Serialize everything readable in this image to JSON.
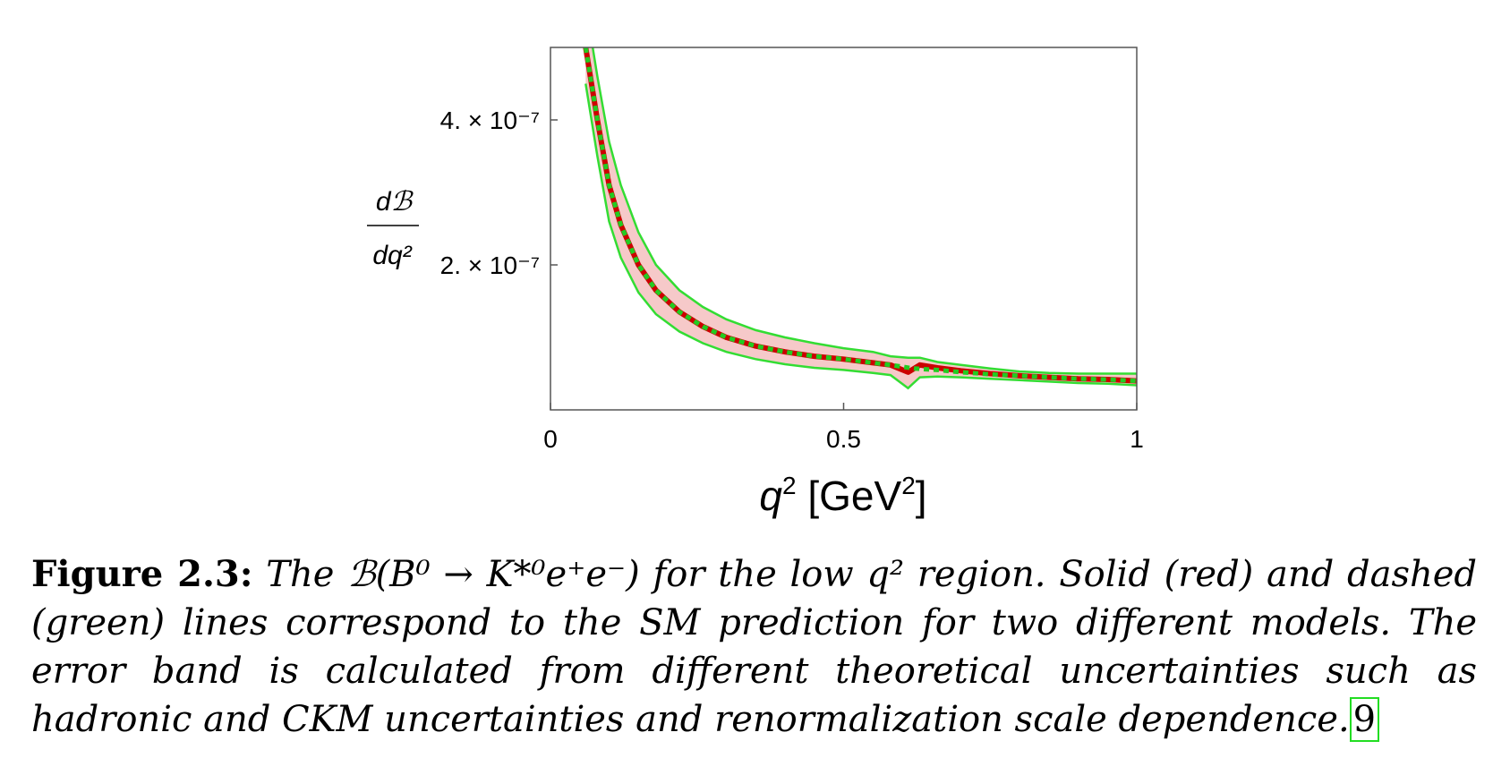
{
  "chart_data": {
    "type": "line",
    "xlabel": "q² [GeV²]",
    "ylabel": "dℬ / dq²",
    "xlim": [
      0,
      1
    ],
    "ylim": [
      0.0,
      5e-07
    ],
    "x_ticks": [
      {
        "value": 0,
        "label": "0"
      },
      {
        "value": 0.5,
        "label": "0.5"
      },
      {
        "value": 1,
        "label": "1"
      }
    ],
    "y_ticks": [
      {
        "value": 2e-07,
        "label": "2. × 10⁻⁷"
      },
      {
        "value": 4e-07,
        "label": "4. × 10⁻⁷"
      }
    ],
    "series": [
      {
        "style": "solid",
        "color": "#cc0000",
        "x": [
          0.06,
          0.08,
          0.1,
          0.12,
          0.15,
          0.18,
          0.22,
          0.26,
          0.3,
          0.35,
          0.4,
          0.45,
          0.5,
          0.55,
          0.58,
          0.61,
          0.63,
          0.66,
          0.7,
          0.75,
          0.8,
          0.85,
          0.9,
          0.95,
          1.0
        ],
        "y": [
          5e-07,
          4e-07,
          3.1e-07,
          2.55e-07,
          2e-07,
          1.65e-07,
          1.35e-07,
          1.15e-07,
          1e-07,
          8.8e-08,
          8e-08,
          7.4e-08,
          7e-08,
          6.5e-08,
          6.2e-08,
          5.2e-08,
          6.2e-08,
          5.8e-08,
          5.4e-08,
          5e-08,
          4.7e-08,
          4.5e-08,
          4.3e-08,
          4.2e-08,
          4e-08
        ]
      },
      {
        "style": "dashed",
        "color": "#22cc22",
        "x": [
          0.06,
          0.08,
          0.1,
          0.12,
          0.15,
          0.18,
          0.22,
          0.26,
          0.3,
          0.35,
          0.4,
          0.45,
          0.5,
          0.55,
          0.58,
          0.62,
          0.66,
          0.7,
          0.75,
          0.8,
          0.85,
          0.9,
          0.95,
          1.0
        ],
        "y": [
          5e-07,
          4e-07,
          3.1e-07,
          2.55e-07,
          2e-07,
          1.65e-07,
          1.35e-07,
          1.15e-07,
          1e-07,
          8.8e-08,
          8e-08,
          7.4e-08,
          7e-08,
          6.5e-08,
          6.2e-08,
          5.7e-08,
          5.5e-08,
          5.2e-08,
          4.9e-08,
          4.7e-08,
          4.5e-08,
          4.3e-08,
          4.2e-08,
          4e-08
        ]
      }
    ],
    "band": {
      "color": "#f6c9c9",
      "edge_color": "#33dd33",
      "x": [
        0.06,
        0.08,
        0.1,
        0.12,
        0.15,
        0.18,
        0.22,
        0.26,
        0.3,
        0.35,
        0.4,
        0.45,
        0.5,
        0.55,
        0.58,
        0.61,
        0.63,
        0.66,
        0.7,
        0.75,
        0.8,
        0.85,
        0.9,
        0.95,
        1.0
      ],
      "upper": [
        5.6e-07,
        4.6e-07,
        3.7e-07,
        3.1e-07,
        2.45e-07,
        2e-07,
        1.65e-07,
        1.42e-07,
        1.25e-07,
        1.1e-07,
        1e-07,
        9.2e-08,
        8.5e-08,
        8e-08,
        7.4e-08,
        7.2e-08,
        7.2e-08,
        6.6e-08,
        6.2e-08,
        5.7e-08,
        5.3e-08,
        5.1e-08,
        5e-08,
        5e-08,
        5e-08
      ],
      "lower": [
        4.5e-07,
        3.5e-07,
        2.6e-07,
        2.1e-07,
        1.62e-07,
        1.32e-07,
        1.08e-07,
        9.2e-08,
        8e-08,
        7e-08,
        6.3e-08,
        5.8e-08,
        5.5e-08,
        5.1e-08,
        4.8e-08,
        3e-08,
        4.5e-08,
        4.6e-08,
        4.5e-08,
        4.3e-08,
        4.1e-08,
        3.9e-08,
        3.7e-08,
        3.6e-08,
        3.4e-08
      ]
    }
  },
  "caption": {
    "label": "Figure 2.3:",
    "text": "The ℬ(B⁰ → K*⁰e⁺e⁻) for the low q² region. Solid (red) and dashed (green) lines correspond to the SM prediction for two different models. The error band is calculated from different theoretical uncertainties such as hadronic and CKM uncertainties and renormalization scale dependence.",
    "citation": "9"
  }
}
